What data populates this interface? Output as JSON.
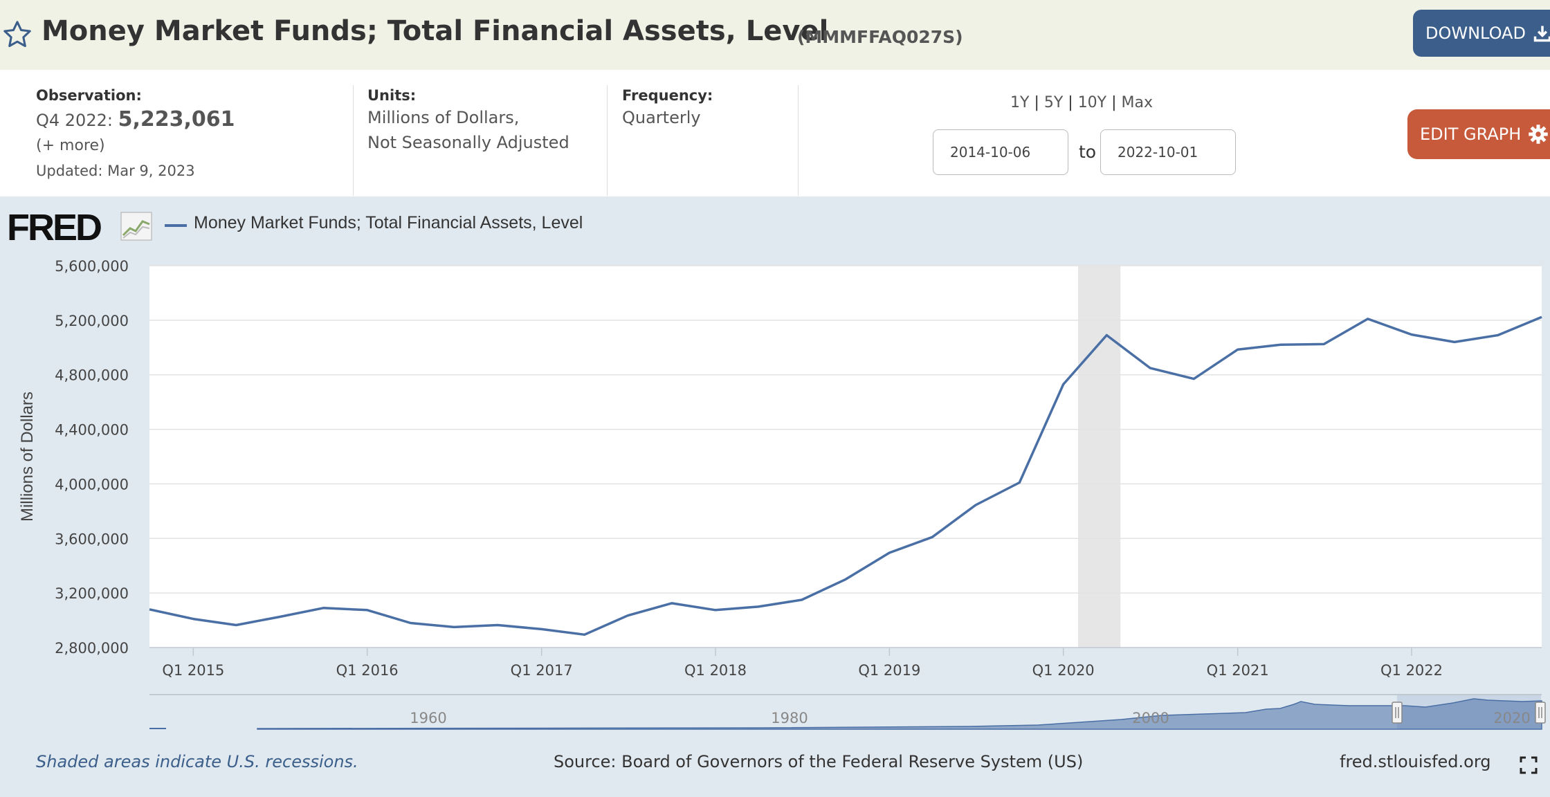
{
  "header": {
    "title": "Money Market Funds; Total Financial Assets, Level",
    "series_id": "(MMMFFAQ027S)",
    "download_label": "DOWNLOAD"
  },
  "meta": {
    "observation_label": "Observation:",
    "observation_period": "Q4 2022:",
    "observation_value": "5,223,061",
    "more": "(+ more)",
    "updated": "Updated: Mar 9, 2023",
    "units_label": "Units:",
    "units_line1": "Millions of Dollars,",
    "units_line2": "Not Seasonally Adjusted",
    "frequency_label": "Frequency:",
    "frequency_value": "Quarterly"
  },
  "range": {
    "options": [
      "1Y",
      "5Y",
      "10Y",
      "Max"
    ],
    "start": "2014-10-06",
    "to": "to",
    "end": "2022-10-01"
  },
  "edit_graph_label": "EDIT GRAPH",
  "logo_text": "FRED",
  "footer": {
    "note": "Shaded areas indicate U.S. recessions.",
    "source": "Source: Board of Governors of the Federal Reserve System (US)",
    "site": "fred.stlouisfed.org"
  },
  "colors": {
    "line": "#4a6fa5",
    "header_bg": "#f0f2e6",
    "download": "#3b5f8a",
    "edit": "#c85a3c"
  },
  "chart_data": {
    "type": "line",
    "ylabel": "Millions of Dollars",
    "ylim": [
      2800000,
      5600000
    ],
    "yticks": [
      2800000,
      3200000,
      3600000,
      4000000,
      4400000,
      4800000,
      5200000,
      5600000
    ],
    "ytick_labels": [
      "2,800,000",
      "3,200,000",
      "3,600,000",
      "4,000,000",
      "4,400,000",
      "4,800,000",
      "5,200,000",
      "5,600,000"
    ],
    "xtick_labels": [
      "Q1 2015",
      "Q1 2016",
      "Q1 2017",
      "Q1 2018",
      "Q1 2019",
      "Q1 2020",
      "Q1 2021",
      "Q1 2022"
    ],
    "xtick_dates": [
      "2015-01-01",
      "2016-01-01",
      "2017-01-01",
      "2018-01-01",
      "2019-01-01",
      "2020-01-01",
      "2021-01-01",
      "2022-01-01"
    ],
    "xlim": [
      "2014-10-01",
      "2022-10-01"
    ],
    "recessions": [
      [
        "2020-02-01",
        "2020-04-30"
      ]
    ],
    "grid": true,
    "series": [
      {
        "name": "Money Market Funds; Total Financial Assets, Level",
        "x": [
          "2014-10-01",
          "2015-01-01",
          "2015-04-01",
          "2015-07-01",
          "2015-10-01",
          "2016-01-01",
          "2016-04-01",
          "2016-07-01",
          "2016-10-01",
          "2017-01-01",
          "2017-04-01",
          "2017-07-01",
          "2017-10-01",
          "2018-01-01",
          "2018-04-01",
          "2018-07-01",
          "2018-10-01",
          "2019-01-01",
          "2019-04-01",
          "2019-07-01",
          "2019-10-01",
          "2020-01-01",
          "2020-04-01",
          "2020-07-01",
          "2020-10-01",
          "2021-01-01",
          "2021-04-01",
          "2021-07-01",
          "2021-10-01",
          "2022-01-01",
          "2022-04-01",
          "2022-07-01",
          "2022-10-01"
        ],
        "values": [
          3080000,
          3010000,
          2965000,
          3025000,
          3090000,
          3075000,
          2980000,
          2950000,
          2965000,
          2935000,
          2895000,
          3035000,
          3125000,
          3075000,
          3100000,
          3150000,
          3300000,
          3495000,
          3610000,
          3845000,
          4010000,
          4730000,
          5090000,
          4850000,
          4770000,
          4985000,
          5020000,
          5025000,
          5210000,
          5095000,
          5040000,
          5090000,
          5223061
        ]
      }
    ]
  },
  "navigator": {
    "year_labels": [
      "1960",
      "1980",
      "2000",
      "2020"
    ]
  }
}
